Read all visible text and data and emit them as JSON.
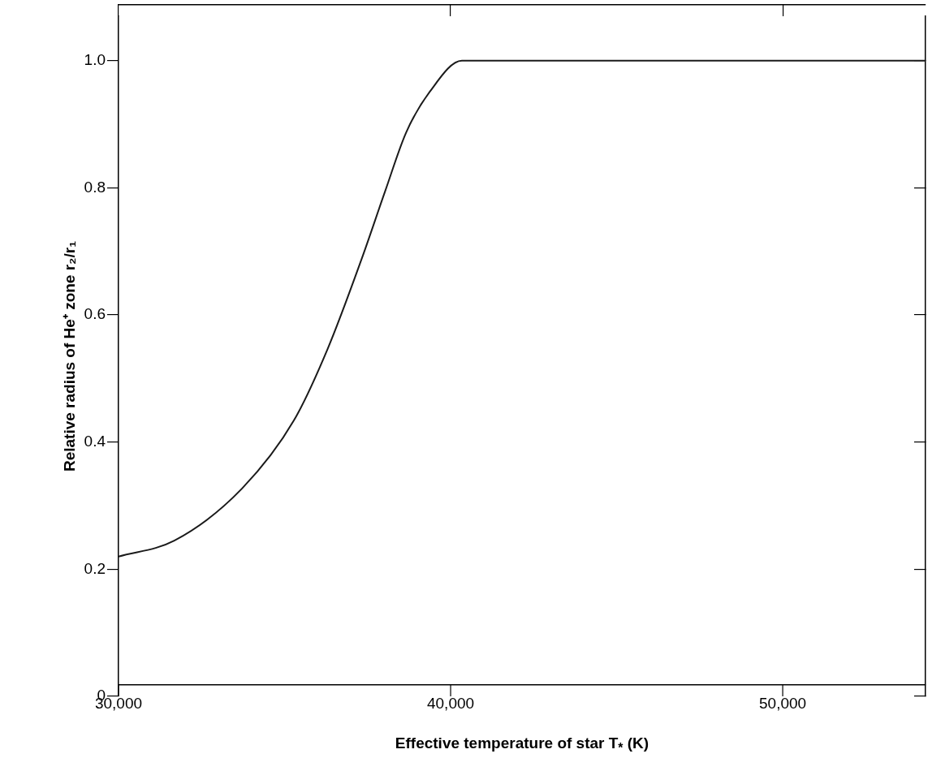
{
  "chart_data": {
    "type": "line",
    "xlabel": "Effective temperature of star T$_{*}$ (K)",
    "ylabel": "Relative radius of He⁺ zone r₂/r₁",
    "x": [
      30000,
      31680,
      33720,
      35280,
      36300,
      37320,
      38030,
      38660,
      39370,
      40340,
      54300
    ],
    "series": [
      {
        "color": "#1a1a1a",
        "values": [
          0.22,
          0.245,
          0.327,
          0.434,
          0.547,
          0.688,
          0.795,
          0.887,
          0.951,
          1.0,
          1.0
        ]
      }
    ],
    "xlim": [
      30000,
      54300
    ],
    "ylim": [
      0,
      1.07
    ],
    "xticks": [
      {
        "value": 30000,
        "label": "30,000"
      },
      {
        "value": 40000,
        "label": "40,000"
      },
      {
        "value": 50000,
        "label": "50,000"
      }
    ],
    "yticks": [
      {
        "value": 0,
        "label": "0"
      },
      {
        "value": 0.2,
        "label": "0.2"
      },
      {
        "value": 0.4,
        "label": "0.4"
      },
      {
        "value": 0.6,
        "label": "0.6"
      },
      {
        "value": 0.8,
        "label": "0.8"
      },
      {
        "value": 1,
        "label": "1.0"
      }
    ],
    "grid": false,
    "marker": "none",
    "line_style": "solid"
  }
}
